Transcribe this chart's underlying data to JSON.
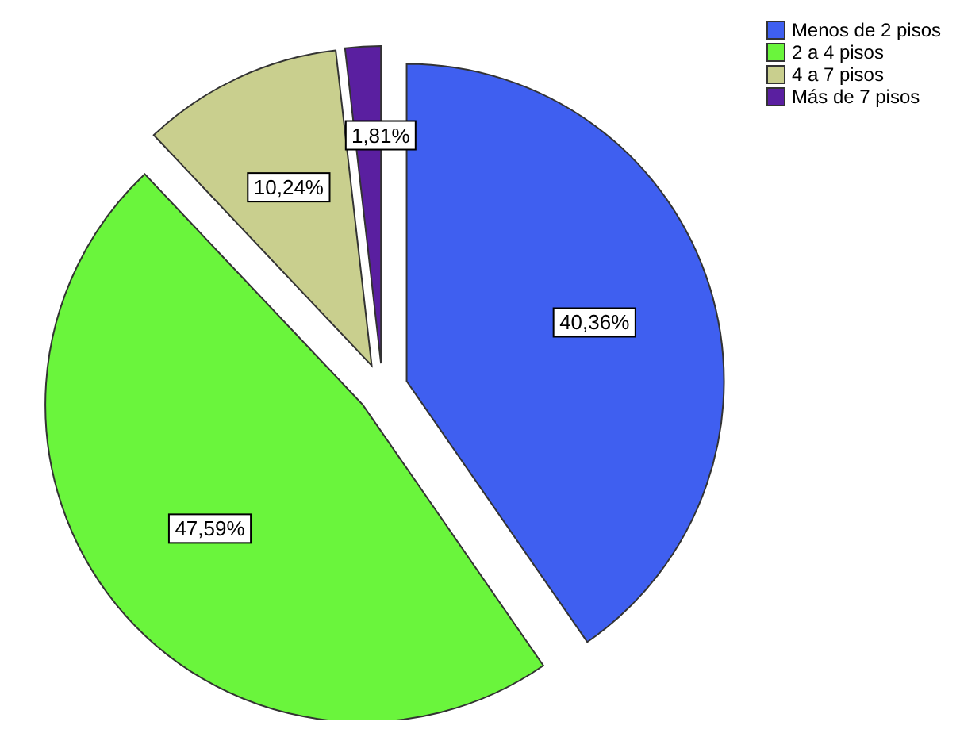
{
  "chart_data": {
    "type": "pie",
    "categories": [
      "Menos de 2 pisos",
      "2 a 4 pisos",
      "4 a 7 pisos",
      "Más de 7 pisos"
    ],
    "values": [
      40.36,
      47.59,
      10.24,
      1.81
    ],
    "colors": [
      "#3f5ff0",
      "#6af53c",
      "#c9cf8e",
      "#5a1fa0"
    ],
    "value_labels": [
      "40,36%",
      "47,59%",
      "10,24%",
      "1,81%"
    ],
    "legend": "top right"
  }
}
